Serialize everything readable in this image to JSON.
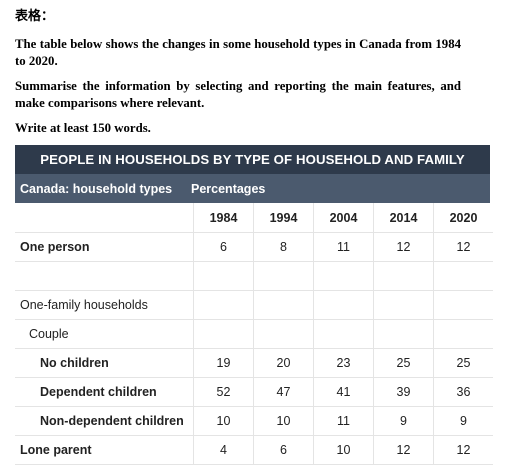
{
  "prompt": {
    "heading": "表格：",
    "intro": "The table below shows the changes in some household types in Canada from 1984 to 2020.",
    "instruction": "Summarise the information by selecting and reporting the main features, and make comparisons where relevant.",
    "word_count": "Write at least 150 words."
  },
  "table": {
    "title": "PEOPLE IN HOUSEHOLDS BY TYPE OF HOUSEHOLD AND FAMILY",
    "col_label": "Canada: household types",
    "col_unit": "Percentages",
    "years": [
      "1984",
      "1994",
      "2004",
      "2014",
      "2020"
    ],
    "rows": [
      {
        "label": "One person",
        "values": [
          "6",
          "8",
          "11",
          "12",
          "12"
        ]
      },
      {
        "label": "",
        "values": [
          "",
          "",
          "",
          "",
          ""
        ]
      },
      {
        "label": "One-family households",
        "values": [
          "",
          "",
          "",
          "",
          ""
        ]
      },
      {
        "label": "Couple",
        "values": [
          "",
          "",
          "",
          "",
          ""
        ]
      },
      {
        "label": "No children",
        "values": [
          "19",
          "20",
          "23",
          "25",
          "25"
        ]
      },
      {
        "label": "Dependent children",
        "values": [
          "52",
          "47",
          "41",
          "39",
          "36"
        ]
      },
      {
        "label": "Non-dependent children",
        "values": [
          "10",
          "10",
          "11",
          "9",
          "9"
        ]
      },
      {
        "label": "Lone parent",
        "values": [
          "4",
          "6",
          "10",
          "12",
          "12"
        ]
      }
    ]
  }
}
